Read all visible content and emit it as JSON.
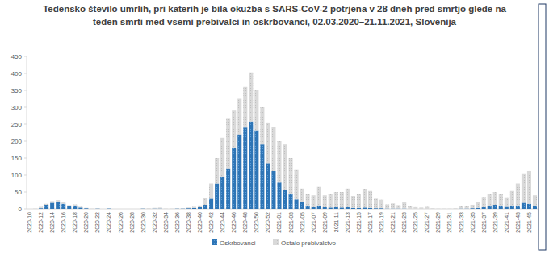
{
  "chart_data": {
    "type": "bar",
    "title": "Tedensko število umrlih, pri katerih je bila okužba s SARS-CoV-2 potrjena v 28 dneh pred smrtjo glede na\nteden smrti med vsemi prebivalci in oskrbovanci, 02.03.2020–21.11.2021, Slovenija",
    "categories": [
      "2020-10",
      null,
      "2020-12",
      null,
      "2020-14",
      null,
      "2020-16",
      null,
      "2020-18",
      null,
      "2020-20",
      null,
      "2020-22",
      null,
      "2020-24",
      null,
      "2020-26",
      null,
      "2020-28",
      null,
      "2020-30",
      null,
      "2020-32",
      null,
      "2020-34",
      null,
      "2020-36",
      null,
      "2020-38",
      null,
      "2020-40",
      null,
      "2020-42",
      null,
      "2020-44",
      null,
      "2020-46",
      null,
      "2020-48",
      null,
      "2020-50",
      null,
      "2020-52",
      null,
      "2021-01",
      null,
      "2021-03",
      null,
      "2021-05",
      null,
      "2021-07",
      null,
      "2021-09",
      null,
      "2021-11",
      null,
      "2021-13",
      null,
      "2021-15",
      null,
      "2021-17",
      null,
      "2021-19",
      null,
      "2021-21",
      null,
      "2021-23",
      null,
      "2021-25",
      null,
      "2021-27",
      null,
      "2021-29",
      null,
      "2021-31",
      null,
      "2021-33",
      null,
      "2021-35",
      null,
      "2021-37",
      null,
      "2021-39",
      null,
      "2021-41",
      null,
      "2021-43",
      null,
      "2021-45",
      null
    ],
    "series": [
      {
        "name": "Oskrbovanci",
        "color": "#2e75b6",
        "values": [
          0,
          0,
          2,
          12,
          18,
          20,
          15,
          8,
          10,
          4,
          2,
          0,
          1,
          0,
          1,
          0,
          0,
          0,
          0,
          0,
          1,
          0,
          1,
          1,
          0,
          0,
          1,
          1,
          2,
          3,
          5,
          12,
          30,
          75,
          95,
          120,
          180,
          220,
          240,
          258,
          232,
          190,
          135,
          112,
          78,
          55,
          45,
          28,
          20,
          8,
          5,
          10,
          5,
          4,
          5,
          4,
          5,
          3,
          3,
          4,
          3,
          2,
          2,
          1,
          1,
          1,
          1,
          0,
          0,
          0,
          0,
          0,
          0,
          0,
          0,
          0,
          1,
          1,
          2,
          3,
          5,
          8,
          12,
          8,
          6,
          8,
          10,
          18,
          15,
          8
        ]
      },
      {
        "name": "Ostalo prebivalstvo",
        "color": "#d9d9d9",
        "values": [
          0,
          1,
          4,
          3,
          5,
          6,
          5,
          3,
          3,
          2,
          1,
          1,
          1,
          0,
          0,
          0,
          0,
          0,
          0,
          0,
          1,
          2,
          2,
          3,
          1,
          1,
          1,
          1,
          2,
          3,
          5,
          20,
          45,
          75,
          115,
          148,
          110,
          105,
          120,
          145,
          118,
          110,
          120,
          130,
          122,
          135,
          105,
          87,
          40,
          37,
          35,
          55,
          35,
          40,
          45,
          46,
          55,
          35,
          42,
          55,
          50,
          28,
          25,
          12,
          15,
          10,
          18,
          8,
          5,
          4,
          6,
          2,
          1,
          1,
          1,
          2,
          8,
          7,
          10,
          18,
          30,
          35,
          38,
          35,
          28,
          45,
          65,
          85,
          97,
          32
        ]
      }
    ],
    "ylim": [
      0,
      450
    ],
    "yticks": [
      0,
      50,
      100,
      150,
      200,
      250,
      300,
      350,
      400,
      450
    ],
    "stacked": true,
    "grid": false,
    "legend": "bottom"
  }
}
